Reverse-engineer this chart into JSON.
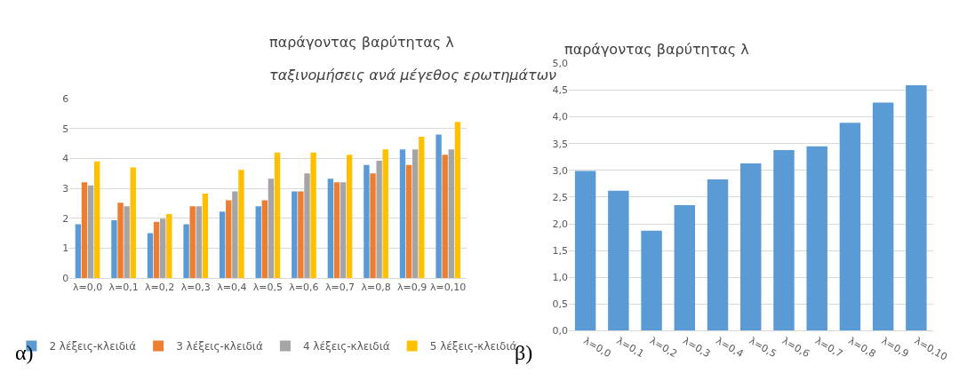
{
  "chart_data": [
    {
      "type": "bar",
      "title": "παράγοντας βαρύτητας λ",
      "subtitle": "ταξινομήσεις ανά μέγεθος ερωτημάτων",
      "categories": [
        "λ=0,0",
        "λ=0,1",
        "λ=0,2",
        "λ=0,3",
        "λ=0,4",
        "λ=0,5",
        "λ=0,6",
        "λ=0,7",
        "λ=0,8",
        "λ=0,9",
        "λ=0,10"
      ],
      "series": [
        {
          "name": "2 λέξεις-κλειδιά",
          "color": "#5b9bd5",
          "values": [
            1.8,
            1.93,
            1.5,
            1.8,
            2.22,
            2.4,
            2.9,
            3.32,
            3.78,
            4.3,
            4.8
          ]
        },
        {
          "name": "3 λέξεις-κλειδιά",
          "color": "#ed7d31",
          "values": [
            3.2,
            2.52,
            1.88,
            2.4,
            2.6,
            2.6,
            2.9,
            3.2,
            3.5,
            3.78,
            4.12
          ]
        },
        {
          "name": "4 λέξεις-κλειδιά",
          "color": "#a5a5a5",
          "values": [
            3.1,
            2.4,
            1.98,
            2.4,
            2.9,
            3.32,
            3.5,
            3.2,
            3.92,
            4.3,
            4.3
          ]
        },
        {
          "name": "5 λέξεις-κλειδιά",
          "color": "#ffc000",
          "values": [
            3.9,
            3.7,
            2.14,
            2.82,
            3.62,
            4.2,
            4.2,
            4.12,
            4.3,
            4.72,
            5.22
          ]
        }
      ],
      "ylim": [
        0,
        6
      ],
      "yticks": [
        0,
        1,
        2,
        3,
        4,
        5,
        6
      ],
      "grid": "y",
      "legend": "bottom",
      "annotations": [
        "α)"
      ]
    },
    {
      "type": "bar",
      "title": "παράγοντας βαρύτητας λ",
      "categories": [
        "λ=0,0",
        "λ=0,1",
        "λ=0,2",
        "λ=0,3",
        "λ=0,4",
        "λ=0,5",
        "λ=0,6",
        "λ=0,7",
        "λ=0,8",
        "λ=0,9",
        "λ=0,10"
      ],
      "series": [
        {
          "color": "#5b9bd5",
          "values": [
            2.99,
            2.62,
            1.87,
            2.35,
            2.83,
            3.13,
            3.38,
            3.45,
            3.89,
            4.27,
            4.59
          ]
        }
      ],
      "ylim": [
        0,
        5
      ],
      "yticks": [
        {
          "value": 0,
          "label": "0,0"
        },
        {
          "value": 0.5,
          "label": "0,5"
        },
        {
          "value": 1,
          "label": "1,0"
        },
        {
          "value": 1.5,
          "label": "1,5"
        },
        {
          "value": 2,
          "label": "2,0"
        },
        {
          "value": 2.5,
          "label": "2,5"
        },
        {
          "value": 3,
          "label": "3,0"
        },
        {
          "value": 3.5,
          "label": "3,5"
        },
        {
          "value": 4,
          "label": "4,0"
        },
        {
          "value": 4.5,
          "label": "4,5"
        },
        {
          "value": 5,
          "label": "5,0"
        }
      ],
      "grid": "y",
      "annotations": [
        "β)"
      ]
    }
  ]
}
